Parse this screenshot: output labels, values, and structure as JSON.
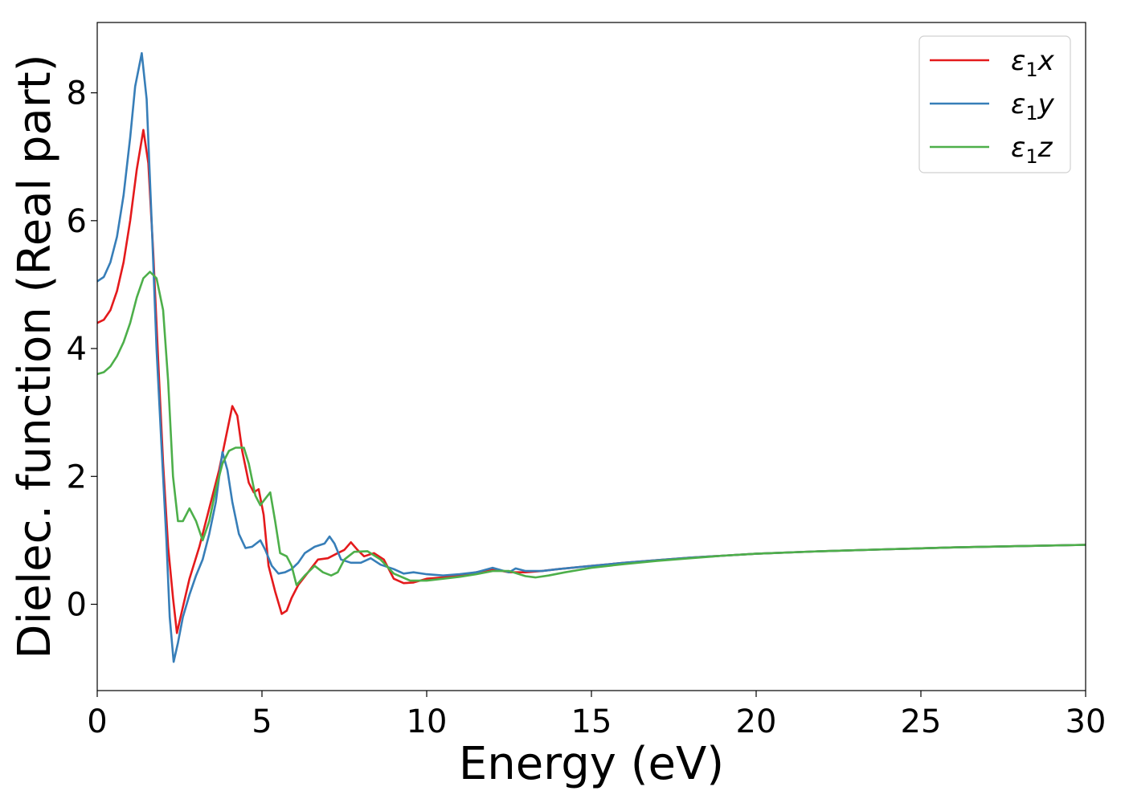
{
  "chart_data": {
    "type": "line",
    "xlabel": "Energy (eV)",
    "ylabel": "Dielec. function (Real part)",
    "xlim": [
      0,
      30
    ],
    "ylim": [
      -1.35,
      9.1
    ],
    "xticks": [
      0,
      5,
      10,
      15,
      20,
      25,
      30
    ],
    "yticks": [
      0,
      2,
      4,
      6,
      8
    ],
    "grid": false,
    "legend_position": "top-right",
    "series": [
      {
        "name": "ε1x",
        "legend_main": "ε",
        "legend_sub": "1",
        "legend_tail": "x",
        "color": "#e41a1c",
        "points": [
          [
            0,
            4.4
          ],
          [
            0.2,
            4.45
          ],
          [
            0.4,
            4.6
          ],
          [
            0.6,
            4.9
          ],
          [
            0.8,
            5.35
          ],
          [
            1.0,
            6.0
          ],
          [
            1.2,
            6.8
          ],
          [
            1.4,
            7.42
          ],
          [
            1.55,
            6.9
          ],
          [
            1.7,
            5.5
          ],
          [
            1.85,
            3.8
          ],
          [
            2.0,
            2.2
          ],
          [
            2.15,
            0.9
          ],
          [
            2.3,
            0.1
          ],
          [
            2.42,
            -0.45
          ],
          [
            2.55,
            -0.15
          ],
          [
            2.8,
            0.4
          ],
          [
            3.1,
            0.9
          ],
          [
            3.4,
            1.5
          ],
          [
            3.7,
            2.1
          ],
          [
            3.9,
            2.6
          ],
          [
            4.1,
            3.1
          ],
          [
            4.25,
            2.95
          ],
          [
            4.4,
            2.4
          ],
          [
            4.6,
            1.9
          ],
          [
            4.75,
            1.75
          ],
          [
            4.9,
            1.8
          ],
          [
            5.05,
            1.4
          ],
          [
            5.2,
            0.6
          ],
          [
            5.4,
            0.2
          ],
          [
            5.6,
            -0.15
          ],
          [
            5.75,
            -0.1
          ],
          [
            5.9,
            0.1
          ],
          [
            6.1,
            0.3
          ],
          [
            6.4,
            0.5
          ],
          [
            6.7,
            0.7
          ],
          [
            7.0,
            0.72
          ],
          [
            7.3,
            0.8
          ],
          [
            7.5,
            0.85
          ],
          [
            7.7,
            0.97
          ],
          [
            7.9,
            0.85
          ],
          [
            8.1,
            0.75
          ],
          [
            8.4,
            0.8
          ],
          [
            8.7,
            0.7
          ],
          [
            9.0,
            0.4
          ],
          [
            9.3,
            0.33
          ],
          [
            9.6,
            0.34
          ],
          [
            10.0,
            0.4
          ],
          [
            10.5,
            0.42
          ],
          [
            11.0,
            0.45
          ],
          [
            11.5,
            0.5
          ],
          [
            12.0,
            0.55
          ],
          [
            12.5,
            0.5
          ],
          [
            13.0,
            0.5
          ],
          [
            13.5,
            0.52
          ],
          [
            14.0,
            0.55
          ],
          [
            15.0,
            0.6
          ],
          [
            16.0,
            0.65
          ],
          [
            17.0,
            0.69
          ],
          [
            18.0,
            0.73
          ],
          [
            19.0,
            0.76
          ],
          [
            20.0,
            0.79
          ],
          [
            22.0,
            0.83
          ],
          [
            24.0,
            0.86
          ],
          [
            26.0,
            0.89
          ],
          [
            28.0,
            0.91
          ],
          [
            30.0,
            0.93
          ]
        ]
      },
      {
        "name": "ε1y",
        "legend_main": "ε",
        "legend_sub": "1",
        "legend_tail": "y",
        "color": "#377eb8",
        "points": [
          [
            0,
            5.05
          ],
          [
            0.2,
            5.12
          ],
          [
            0.4,
            5.35
          ],
          [
            0.6,
            5.75
          ],
          [
            0.8,
            6.4
          ],
          [
            1.0,
            7.3
          ],
          [
            1.15,
            8.1
          ],
          [
            1.35,
            8.62
          ],
          [
            1.5,
            7.9
          ],
          [
            1.65,
            6.0
          ],
          [
            1.8,
            4.0
          ],
          [
            1.95,
            2.5
          ],
          [
            2.1,
            1.0
          ],
          [
            2.2,
            -0.2
          ],
          [
            2.32,
            -0.9
          ],
          [
            2.45,
            -0.6
          ],
          [
            2.6,
            -0.2
          ],
          [
            2.8,
            0.15
          ],
          [
            3.0,
            0.45
          ],
          [
            3.2,
            0.7
          ],
          [
            3.4,
            1.1
          ],
          [
            3.6,
            1.6
          ],
          [
            3.8,
            2.38
          ],
          [
            3.95,
            2.1
          ],
          [
            4.1,
            1.6
          ],
          [
            4.3,
            1.1
          ],
          [
            4.5,
            0.88
          ],
          [
            4.7,
            0.9
          ],
          [
            4.95,
            1.0
          ],
          [
            5.1,
            0.85
          ],
          [
            5.3,
            0.6
          ],
          [
            5.5,
            0.48
          ],
          [
            5.7,
            0.5
          ],
          [
            5.9,
            0.55
          ],
          [
            6.1,
            0.65
          ],
          [
            6.3,
            0.8
          ],
          [
            6.6,
            0.9
          ],
          [
            6.9,
            0.95
          ],
          [
            7.05,
            1.06
          ],
          [
            7.2,
            0.95
          ],
          [
            7.4,
            0.7
          ],
          [
            7.7,
            0.65
          ],
          [
            8.0,
            0.65
          ],
          [
            8.3,
            0.72
          ],
          [
            8.6,
            0.62
          ],
          [
            9.0,
            0.55
          ],
          [
            9.3,
            0.48
          ],
          [
            9.6,
            0.5
          ],
          [
            10.0,
            0.47
          ],
          [
            10.5,
            0.45
          ],
          [
            11.0,
            0.47
          ],
          [
            11.5,
            0.5
          ],
          [
            12.0,
            0.57
          ],
          [
            12.5,
            0.5
          ],
          [
            12.7,
            0.56
          ],
          [
            13.0,
            0.52
          ],
          [
            13.5,
            0.52
          ],
          [
            14.0,
            0.55
          ],
          [
            15.0,
            0.6
          ],
          [
            16.0,
            0.65
          ],
          [
            17.0,
            0.69
          ],
          [
            18.0,
            0.73
          ],
          [
            19.0,
            0.76
          ],
          [
            20.0,
            0.79
          ],
          [
            22.0,
            0.83
          ],
          [
            24.0,
            0.86
          ],
          [
            26.0,
            0.89
          ],
          [
            28.0,
            0.91
          ],
          [
            30.0,
            0.93
          ]
        ]
      },
      {
        "name": "ε1z",
        "legend_main": "ε",
        "legend_sub": "1",
        "legend_tail": "z",
        "color": "#4daf4a",
        "points": [
          [
            0,
            3.6
          ],
          [
            0.2,
            3.63
          ],
          [
            0.4,
            3.72
          ],
          [
            0.6,
            3.88
          ],
          [
            0.8,
            4.1
          ],
          [
            1.0,
            4.4
          ],
          [
            1.2,
            4.8
          ],
          [
            1.4,
            5.1
          ],
          [
            1.6,
            5.2
          ],
          [
            1.8,
            5.1
          ],
          [
            2.0,
            4.6
          ],
          [
            2.15,
            3.5
          ],
          [
            2.3,
            2.0
          ],
          [
            2.45,
            1.3
          ],
          [
            2.6,
            1.3
          ],
          [
            2.8,
            1.5
          ],
          [
            3.0,
            1.3
          ],
          [
            3.2,
            1.0
          ],
          [
            3.4,
            1.3
          ],
          [
            3.6,
            1.8
          ],
          [
            3.8,
            2.2
          ],
          [
            4.0,
            2.4
          ],
          [
            4.2,
            2.45
          ],
          [
            4.45,
            2.45
          ],
          [
            4.6,
            2.2
          ],
          [
            4.8,
            1.7
          ],
          [
            4.95,
            1.55
          ],
          [
            5.1,
            1.65
          ],
          [
            5.25,
            1.75
          ],
          [
            5.4,
            1.3
          ],
          [
            5.55,
            0.8
          ],
          [
            5.75,
            0.75
          ],
          [
            5.9,
            0.6
          ],
          [
            6.05,
            0.3
          ],
          [
            6.3,
            0.45
          ],
          [
            6.6,
            0.6
          ],
          [
            6.85,
            0.5
          ],
          [
            7.1,
            0.45
          ],
          [
            7.3,
            0.5
          ],
          [
            7.5,
            0.7
          ],
          [
            7.8,
            0.82
          ],
          [
            8.2,
            0.83
          ],
          [
            8.6,
            0.7
          ],
          [
            9.0,
            0.48
          ],
          [
            9.5,
            0.37
          ],
          [
            10.0,
            0.37
          ],
          [
            10.5,
            0.4
          ],
          [
            11.0,
            0.43
          ],
          [
            11.5,
            0.47
          ],
          [
            12.0,
            0.52
          ],
          [
            12.5,
            0.52
          ],
          [
            13.0,
            0.44
          ],
          [
            13.3,
            0.42
          ],
          [
            13.7,
            0.45
          ],
          [
            14.2,
            0.5
          ],
          [
            15.0,
            0.57
          ],
          [
            16.0,
            0.63
          ],
          [
            17.0,
            0.68
          ],
          [
            18.0,
            0.72
          ],
          [
            19.0,
            0.76
          ],
          [
            20.0,
            0.79
          ],
          [
            22.0,
            0.83
          ],
          [
            24.0,
            0.86
          ],
          [
            26.0,
            0.89
          ],
          [
            28.0,
            0.91
          ],
          [
            30.0,
            0.93
          ]
        ]
      }
    ]
  }
}
